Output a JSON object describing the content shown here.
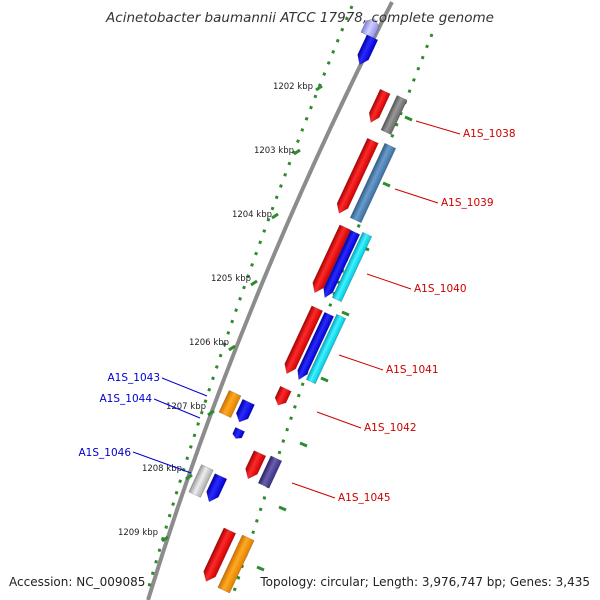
{
  "title": "Acinetobacter baumannii ATCC 17978, complete genome",
  "accession": "Accession: NC_009085",
  "topology": "Topology: circular; Length: 3,976,747 bp; Genes: 3,435",
  "colors": {
    "backbone": "#8c8c8c",
    "tick_track": "#2e8b2e",
    "red_label": "#cc0000",
    "blue_label": "#0000cc",
    "red": "#ff0000",
    "blue": "#0000ff",
    "cyan": "#00e0ff",
    "orange": "#ff9900",
    "steelblue": "#4682b4",
    "gray": "#777777",
    "silver": "#c8c8c8",
    "slateblue": "#483d8b",
    "lavender": "#aaaaff"
  },
  "ticks": [
    {
      "label": "1202 kbp"
    },
    {
      "label": "1203 kbp"
    },
    {
      "label": "1204 kbp"
    },
    {
      "label": "1205 kbp"
    },
    {
      "label": "1206 kbp"
    },
    {
      "label": "1207 kbp"
    },
    {
      "label": "1208 kbp"
    },
    {
      "label": "1209 kbp"
    }
  ],
  "gene_labels": [
    {
      "text": "A1S_1038",
      "color": "red"
    },
    {
      "text": "A1S_1039",
      "color": "red"
    },
    {
      "text": "A1S_1040",
      "color": "red"
    },
    {
      "text": "A1S_1041",
      "color": "red"
    },
    {
      "text": "A1S_1042",
      "color": "red"
    },
    {
      "text": "A1S_1045",
      "color": "red"
    },
    {
      "text": "A1S_1043",
      "color": "blue"
    },
    {
      "text": "A1S_1044",
      "color": "blue"
    },
    {
      "text": "A1S_1046",
      "color": "blue"
    }
  ]
}
